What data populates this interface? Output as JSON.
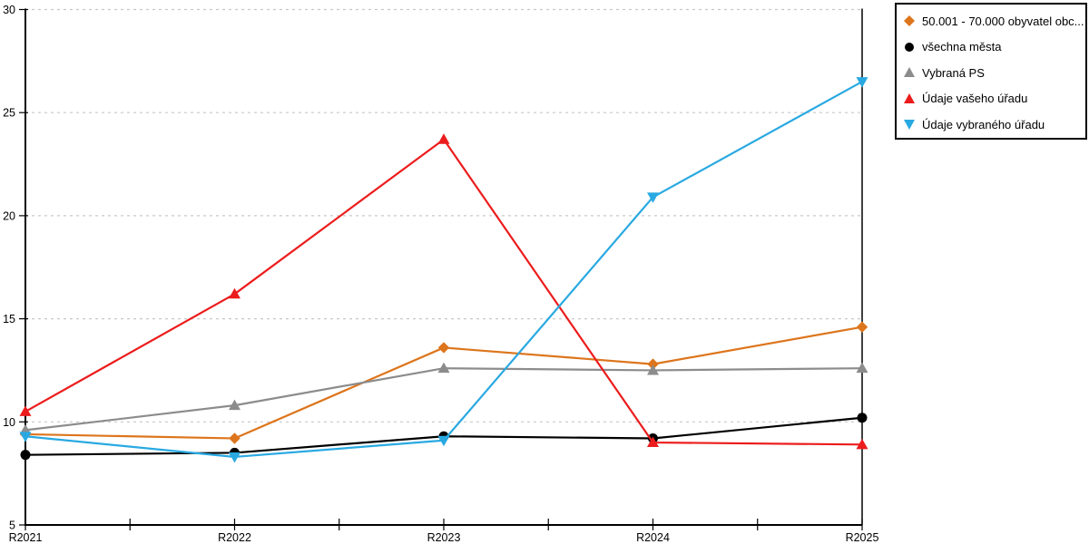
{
  "chart_data": {
    "type": "line",
    "title": "",
    "xlabel": "",
    "ylabel": "",
    "categories": [
      "R2021",
      "R2022",
      "R2023",
      "R2024",
      "R2025"
    ],
    "series": [
      {
        "name": "50.001 - 70.000 obyvatel obc...",
        "marker": "diamond",
        "color": "#DD751C",
        "values": [
          9.4,
          9.2,
          13.6,
          12.8,
          14.6
        ]
      },
      {
        "name": "všechna města",
        "marker": "circle",
        "color": "#000000",
        "values": [
          8.4,
          8.5,
          9.3,
          9.2,
          10.2
        ]
      },
      {
        "name": "Vybraná PS",
        "marker": "triangle-up",
        "color": "#8C8C8C",
        "values": [
          9.6,
          10.8,
          12.6,
          12.5,
          12.6
        ]
      },
      {
        "name": "Údaje vašeho úřadu",
        "marker": "triangle-up",
        "color": "#EC1C1C",
        "values": [
          10.5,
          16.2,
          23.7,
          9.0,
          8.9
        ]
      },
      {
        "name": "Údaje vybraného úřadu",
        "marker": "triangle-down",
        "color": "#29A9E1",
        "values": [
          9.3,
          8.3,
          9.1,
          20.9,
          26.5
        ]
      }
    ],
    "ylim": [
      5,
      30
    ],
    "yticks": [
      5,
      10,
      15,
      20,
      25,
      30
    ],
    "grid": true,
    "gridstyle": "dashed",
    "legend_position": "top-right"
  },
  "colors": {
    "background": "#FFFFFF",
    "axis": "#000000",
    "gridline": "#C8C8C8",
    "text": "#000000"
  }
}
